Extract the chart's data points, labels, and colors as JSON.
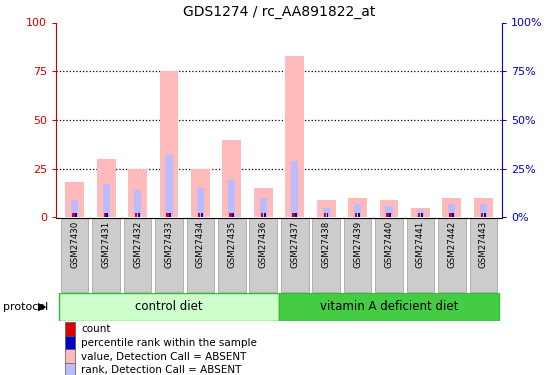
{
  "title": "GDS1274 / rc_AA891822_at",
  "samples": [
    "GSM27430",
    "GSM27431",
    "GSM27432",
    "GSM27433",
    "GSM27434",
    "GSM27435",
    "GSM27436",
    "GSM27437",
    "GSM27438",
    "GSM27439",
    "GSM27440",
    "GSM27441",
    "GSM27442",
    "GSM27443"
  ],
  "pink_values": [
    18,
    30,
    25,
    75,
    25,
    40,
    15,
    83,
    9,
    10,
    9,
    5,
    10,
    10
  ],
  "blue_rank_values": [
    9,
    17,
    14,
    32,
    15,
    19,
    10,
    29,
    5,
    7,
    6,
    4,
    7,
    7
  ],
  "control_count": 7,
  "vita_count": 7,
  "control_diet_label": "control diet",
  "vitA_label": "vitamin A deficient diet",
  "protocol_label": "protocol",
  "legend_items": [
    {
      "color": "#dd0000",
      "label": "count"
    },
    {
      "color": "#0000cc",
      "label": "percentile rank within the sample"
    },
    {
      "color": "#ffbbbb",
      "label": "value, Detection Call = ABSENT"
    },
    {
      "color": "#bbbbff",
      "label": "rank, Detection Call = ABSENT"
    }
  ],
  "ylim": [
    0,
    100
  ],
  "yticks": [
    0,
    25,
    50,
    75,
    100
  ],
  "ytick_labels_left": [
    "0",
    "25",
    "50",
    "75",
    "100"
  ],
  "ytick_labels_right": [
    "0%",
    "25%",
    "50%",
    "75%",
    "100%"
  ],
  "left_axis_color": "#cc0000",
  "right_axis_color": "#0000cc",
  "control_bg_light": "#ccffcc",
  "vita_bg": "#44cc44",
  "xticklabel_bg": "#cccccc"
}
